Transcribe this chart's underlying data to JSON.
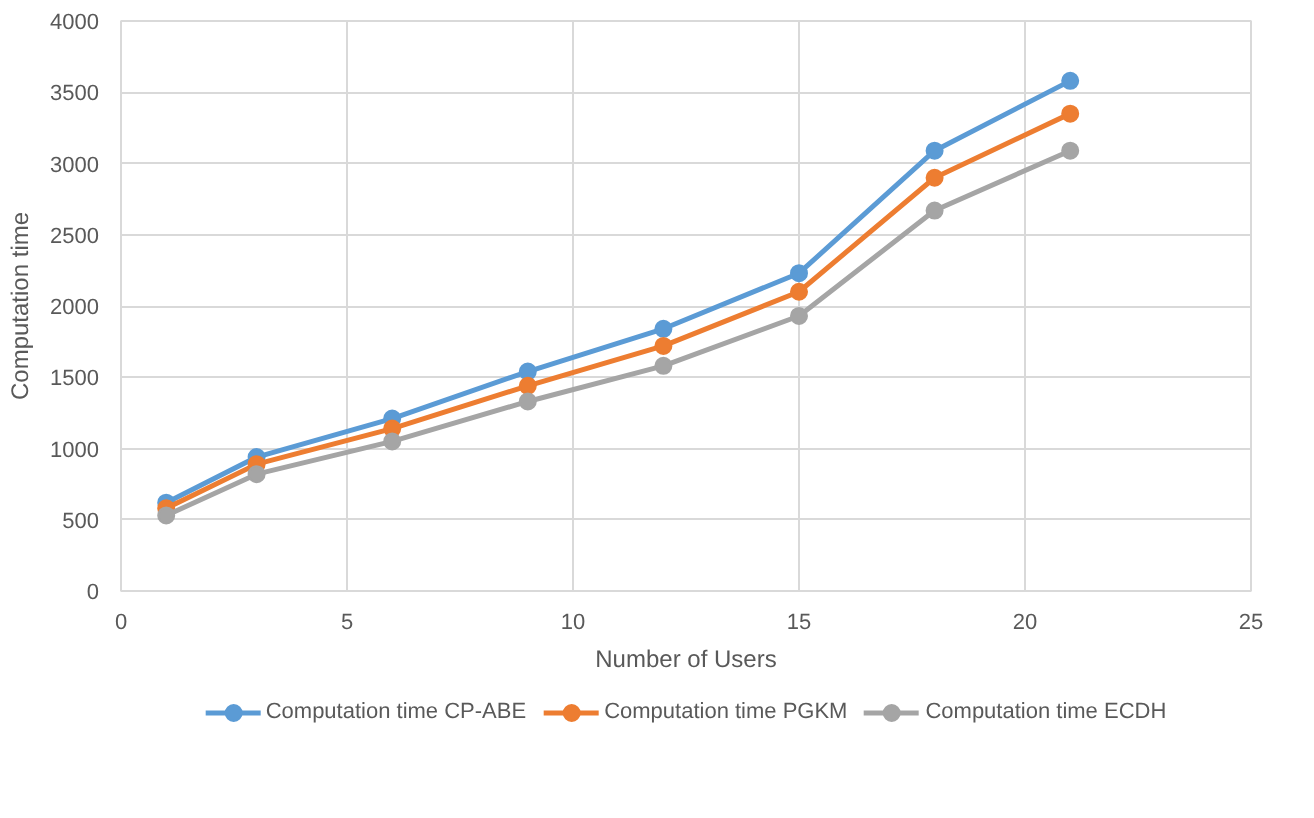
{
  "chart_data": {
    "type": "line",
    "xlabel": "Number of Users",
    "ylabel": "Computation time",
    "x": [
      1,
      3,
      6,
      9,
      12,
      15,
      18,
      21
    ],
    "series": [
      {
        "name": "Computation time CP-ABE",
        "color": "#5b9bd5",
        "values": [
          620,
          940,
          1210,
          1540,
          1840,
          2230,
          3090,
          3580
        ]
      },
      {
        "name": "Computation time PGKM",
        "color": "#ed7d31",
        "values": [
          580,
          890,
          1140,
          1440,
          1720,
          2100,
          2900,
          3350
        ]
      },
      {
        "name": "Computation time ECDH",
        "color": "#a5a5a5",
        "values": [
          530,
          820,
          1050,
          1330,
          1580,
          1930,
          2670,
          3090
        ]
      }
    ],
    "xlim": [
      0,
      25
    ],
    "xticks": [
      0,
      5,
      10,
      15,
      20,
      25
    ],
    "ylim": [
      0,
      4000
    ],
    "yticks": [
      0,
      500,
      1000,
      1500,
      2000,
      2500,
      3000,
      3500,
      4000
    ],
    "grid": true,
    "legend": "bottom",
    "marker": "circle",
    "line_style": "solid"
  }
}
